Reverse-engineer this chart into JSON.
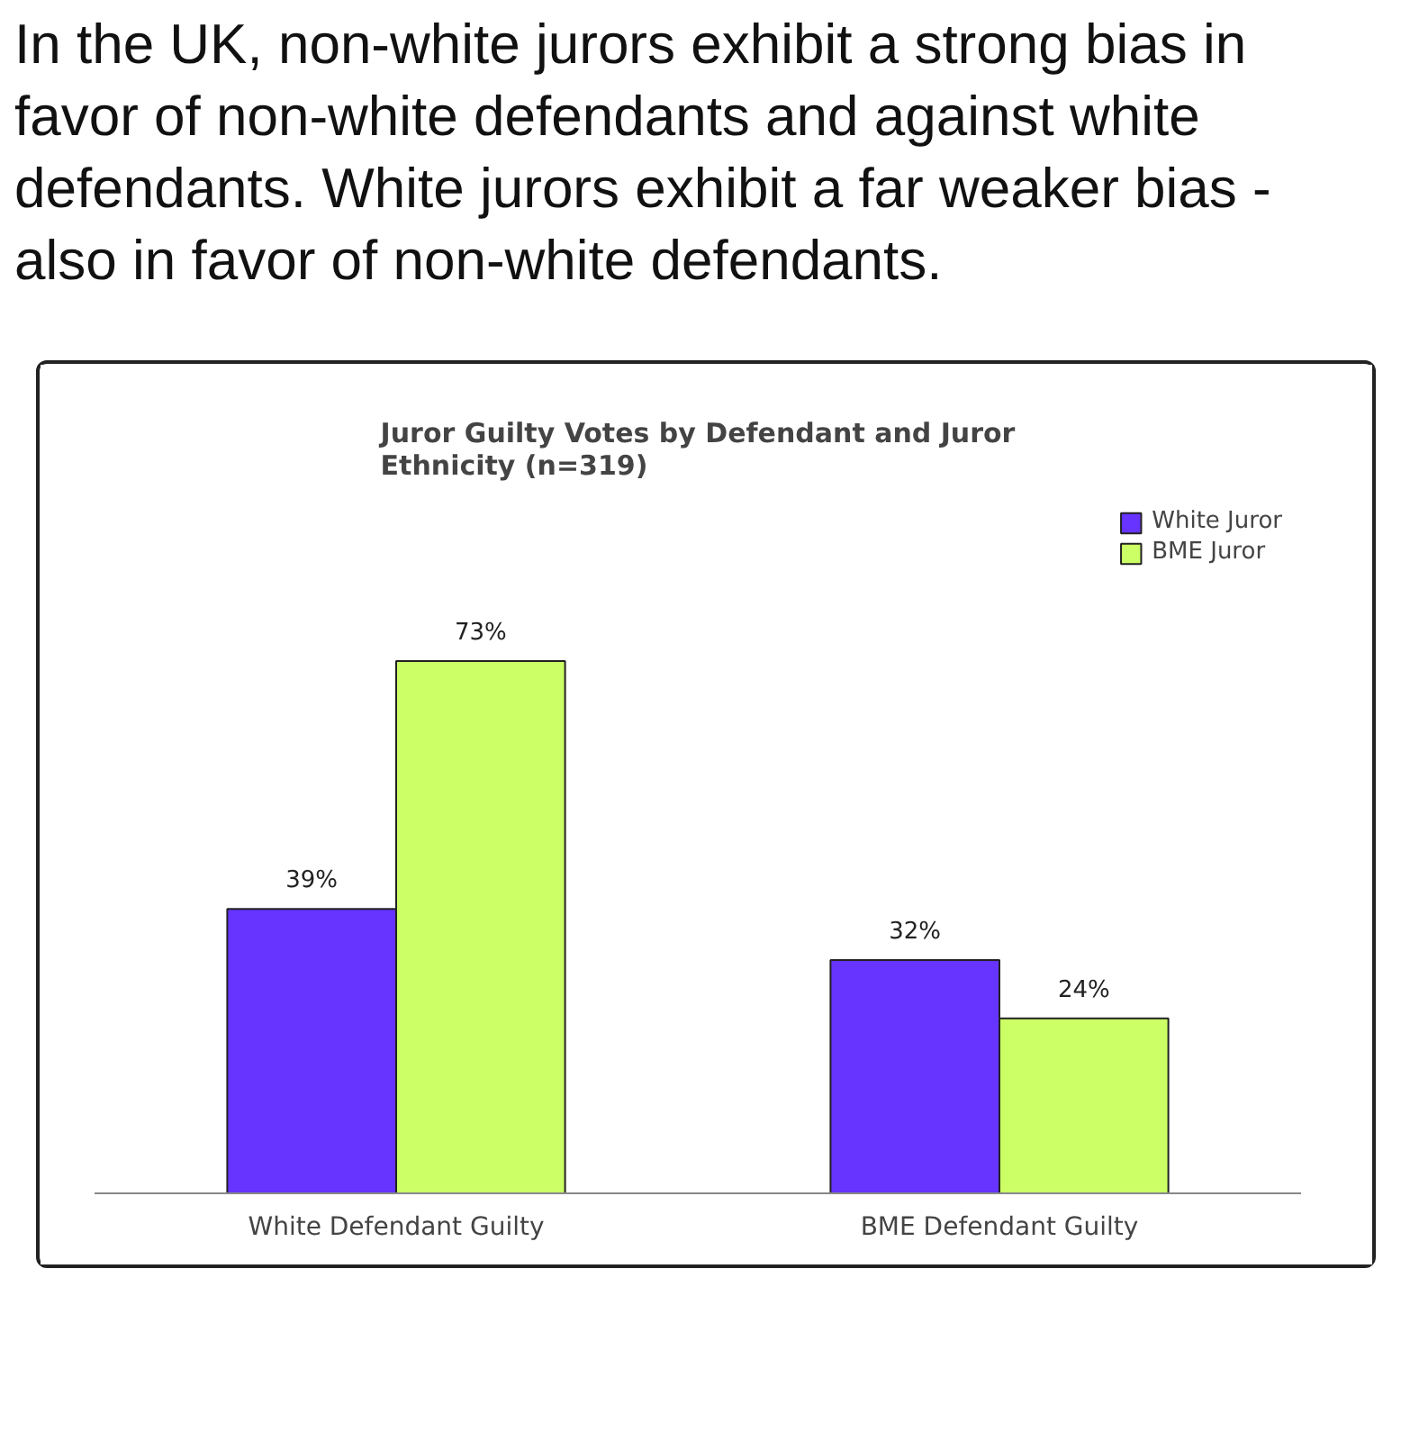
{
  "chart_data": {
    "type": "bar",
    "title": "Juror Guilty Votes by Defendant and Juror\nEthnicity (n=319)",
    "annotations": [
      "In the UK, non-white jurors exhibit a strong bias in favor of non-white defendants and against white defendants. White jurors exhibit a far weaker bias - also in favor of non-white defendants."
    ],
    "categories": [
      "White Defendant Guilty",
      "BME Defendant Guilty"
    ],
    "series": [
      {
        "name": "White Juror",
        "color": "#6633ff",
        "values": [
          39,
          32
        ],
        "value_labels": [
          "39%",
          "32%"
        ]
      },
      {
        "name": "BME Juror",
        "color": "#ccff66",
        "values": [
          73,
          24
        ],
        "value_labels": [
          "73%",
          "24%"
        ]
      }
    ],
    "legend": "top right",
    "grid": false
  }
}
